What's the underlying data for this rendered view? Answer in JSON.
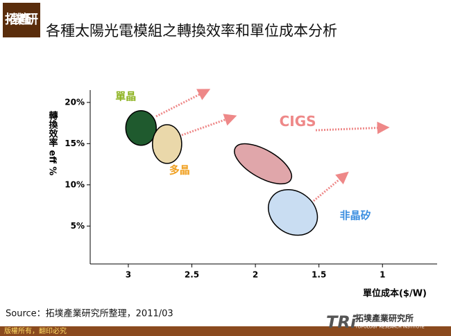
{
  "slide": {
    "logo": "拓墣產研",
    "title": "各種太陽光電模組之轉換效率和單位成本分析",
    "source": "Source：拓墣產業研究所整理，2011/03",
    "copyright": "版權所有，翻印必究",
    "brand_mark": "TRi",
    "brand_name": "拓墣產業研究所",
    "brand_sub": "TOPOLOGY RESEARCH INSTITUTE"
  },
  "chart_data": {
    "type": "ellipse",
    "x_label": "單位成本($/W)",
    "y_label": "轉換效率 eff %",
    "xlim": [
      3.3,
      0.57
    ],
    "xticks": [
      3,
      2.5,
      2,
      1.5,
      1
    ],
    "ylim": [
      0.4,
      21.5
    ],
    "yticks": [
      {
        "value": 5,
        "label": "5%"
      },
      {
        "value": 10,
        "label": "10%"
      },
      {
        "value": 15,
        "label": "15%"
      },
      {
        "value": 20,
        "label": "20%"
      }
    ],
    "series": [
      {
        "name": "單晶",
        "color": "#1f5a2e",
        "label_color": "#8cb21e",
        "x": [
          3.02,
          2.78
        ],
        "y": [
          14.8,
          19.0
        ]
      },
      {
        "name": "多晶",
        "color": "#ead8aa",
        "label_color": "#f0a020",
        "x": [
          2.81,
          2.58
        ],
        "y": [
          12.6,
          17.3
        ]
      },
      {
        "name": "CIGS",
        "color": "#e0a6aa",
        "label_color": "#ee8888",
        "x": [
          2.18,
          1.7
        ],
        "y": [
          10.3,
          14.8
        ]
      },
      {
        "name": "非晶矽",
        "color": "#c9ddf2",
        "label_color": "#3a8ee0",
        "x": [
          1.9,
          1.51
        ],
        "y": [
          3.65,
          9.65
        ]
      }
    ]
  }
}
